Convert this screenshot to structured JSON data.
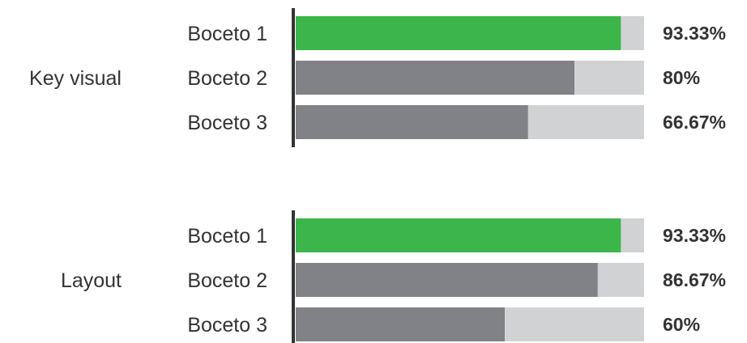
{
  "chart_data": {
    "type": "bar",
    "orientation": "horizontal",
    "stacked_track": true,
    "xlim": [
      0,
      100
    ],
    "value_unit": "%",
    "colors": {
      "highlight": "#3cb54a",
      "bar": "#818285",
      "track": "#d1d2d4",
      "axis": "#333333"
    },
    "groups": [
      {
        "name": "Key visual",
        "categories": [
          "Boceto 1",
          "Boceto 2",
          "Boceto 3"
        ],
        "values": [
          93.33,
          80,
          66.67
        ],
        "value_labels": [
          "93.33%",
          "80%",
          "66.67%"
        ],
        "highlight_index": 0
      },
      {
        "name": "Layout",
        "categories": [
          "Boceto 1",
          "Boceto 2",
          "Boceto 3"
        ],
        "values": [
          93.33,
          86.67,
          60
        ],
        "value_labels": [
          "93.33%",
          "86.67%",
          "60%"
        ],
        "highlight_index": 0
      }
    ]
  }
}
